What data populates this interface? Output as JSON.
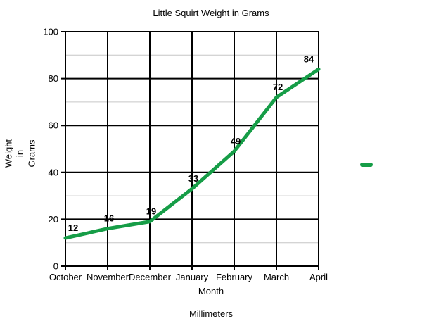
{
  "chart_data": {
    "type": "line",
    "title": "Little Squirt Weight in Grams",
    "categories": [
      "October",
      "November",
      "December",
      "January",
      "February",
      "March",
      "April"
    ],
    "series": [
      {
        "name": "",
        "values": [
          12,
          16,
          19,
          33,
          49,
          72,
          84
        ]
      }
    ],
    "xlabel": "Month",
    "ylabel": "Weight\nin\nGrams",
    "caption": "Millimeters",
    "ylim": [
      0,
      100
    ],
    "y_major_ticks": [
      0,
      20,
      40,
      60,
      80,
      100
    ],
    "y_minor_ticks": [
      10,
      30,
      50,
      70,
      90
    ],
    "grid": "horizontal major (black) + minor (gray), vertical major (black)",
    "legend_position": "right",
    "colors": {
      "line": "#169d47",
      "major_grid": "#000000",
      "minor_grid": "#c6c6c6",
      "text": "#000000",
      "background": "#ffffff"
    }
  }
}
